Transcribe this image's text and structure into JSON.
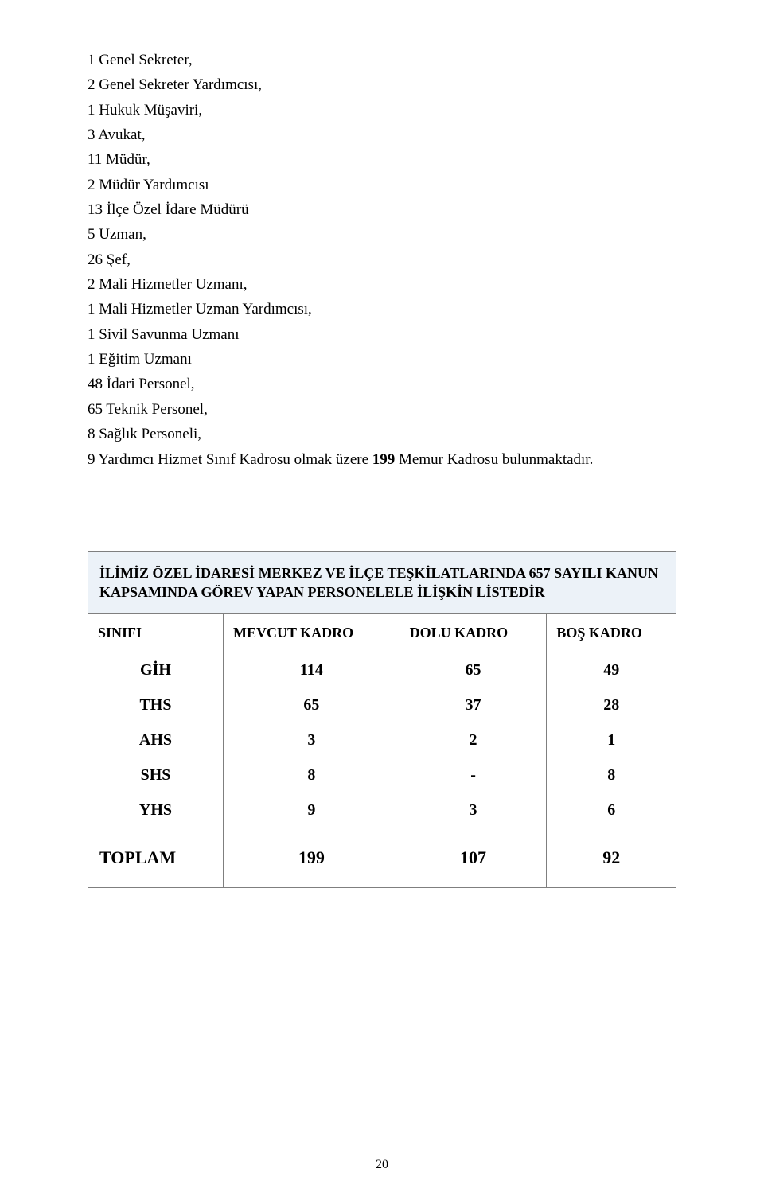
{
  "body_text": {
    "lines": [
      "1 Genel Sekreter,",
      "2 Genel Sekreter Yardımcısı,",
      "1 Hukuk Müşaviri,",
      "3 Avukat,",
      "11 Müdür,",
      "2 Müdür Yardımcısı",
      "13 İlçe Özel İdare Müdürü",
      "5 Uzman,",
      "26 Şef,",
      "2 Mali Hizmetler Uzmanı,",
      "1 Mali Hizmetler Uzman Yardımcısı,",
      "1 Sivil Savunma Uzmanı",
      "1 Eğitim Uzmanı",
      "48 İdari Personel,",
      "65 Teknik Personel,",
      "8 Sağlık Personeli,"
    ],
    "final_line_prefix": "9 Yardımcı Hizmet Sınıf Kadrosu olmak üzere ",
    "final_line_bold": "199",
    "final_line_suffix": " Memur Kadrosu bulunmaktadır."
  },
  "table": {
    "title": "İLİMİZ ÖZEL İDARESİ MERKEZ VE İLÇE TEŞKİLATLARINDA 657 SAYILI KANUN KAPSAMINDA GÖREV YAPAN PERSONELELE İLİŞKİN LİSTEDİR",
    "title_bg": "#ecf2f8",
    "border_color": "#7f7f7f",
    "columns": [
      {
        "key": "sinifi",
        "label": "SINIFI"
      },
      {
        "key": "mevcut",
        "label": "MEVCUT KADRO"
      },
      {
        "key": "dolu",
        "label": "DOLU KADRO"
      },
      {
        "key": "bos",
        "label": "BOŞ KADRO"
      }
    ],
    "rows": [
      {
        "sinifi": "GİH",
        "mevcut": "114",
        "dolu": "65",
        "bos": "49"
      },
      {
        "sinifi": "THS",
        "mevcut": "65",
        "dolu": "37",
        "bos": "28"
      },
      {
        "sinifi": "AHS",
        "mevcut": "3",
        "dolu": "2",
        "bos": "1"
      },
      {
        "sinifi": "SHS",
        "mevcut": "8",
        "dolu": "-",
        "bos": "8"
      },
      {
        "sinifi": "YHS",
        "mevcut": "9",
        "dolu": "3",
        "bos": "6"
      }
    ],
    "total": {
      "label": "TOPLAM",
      "mevcut": "199",
      "dolu": "107",
      "bos": "92"
    }
  },
  "page_number": "20"
}
